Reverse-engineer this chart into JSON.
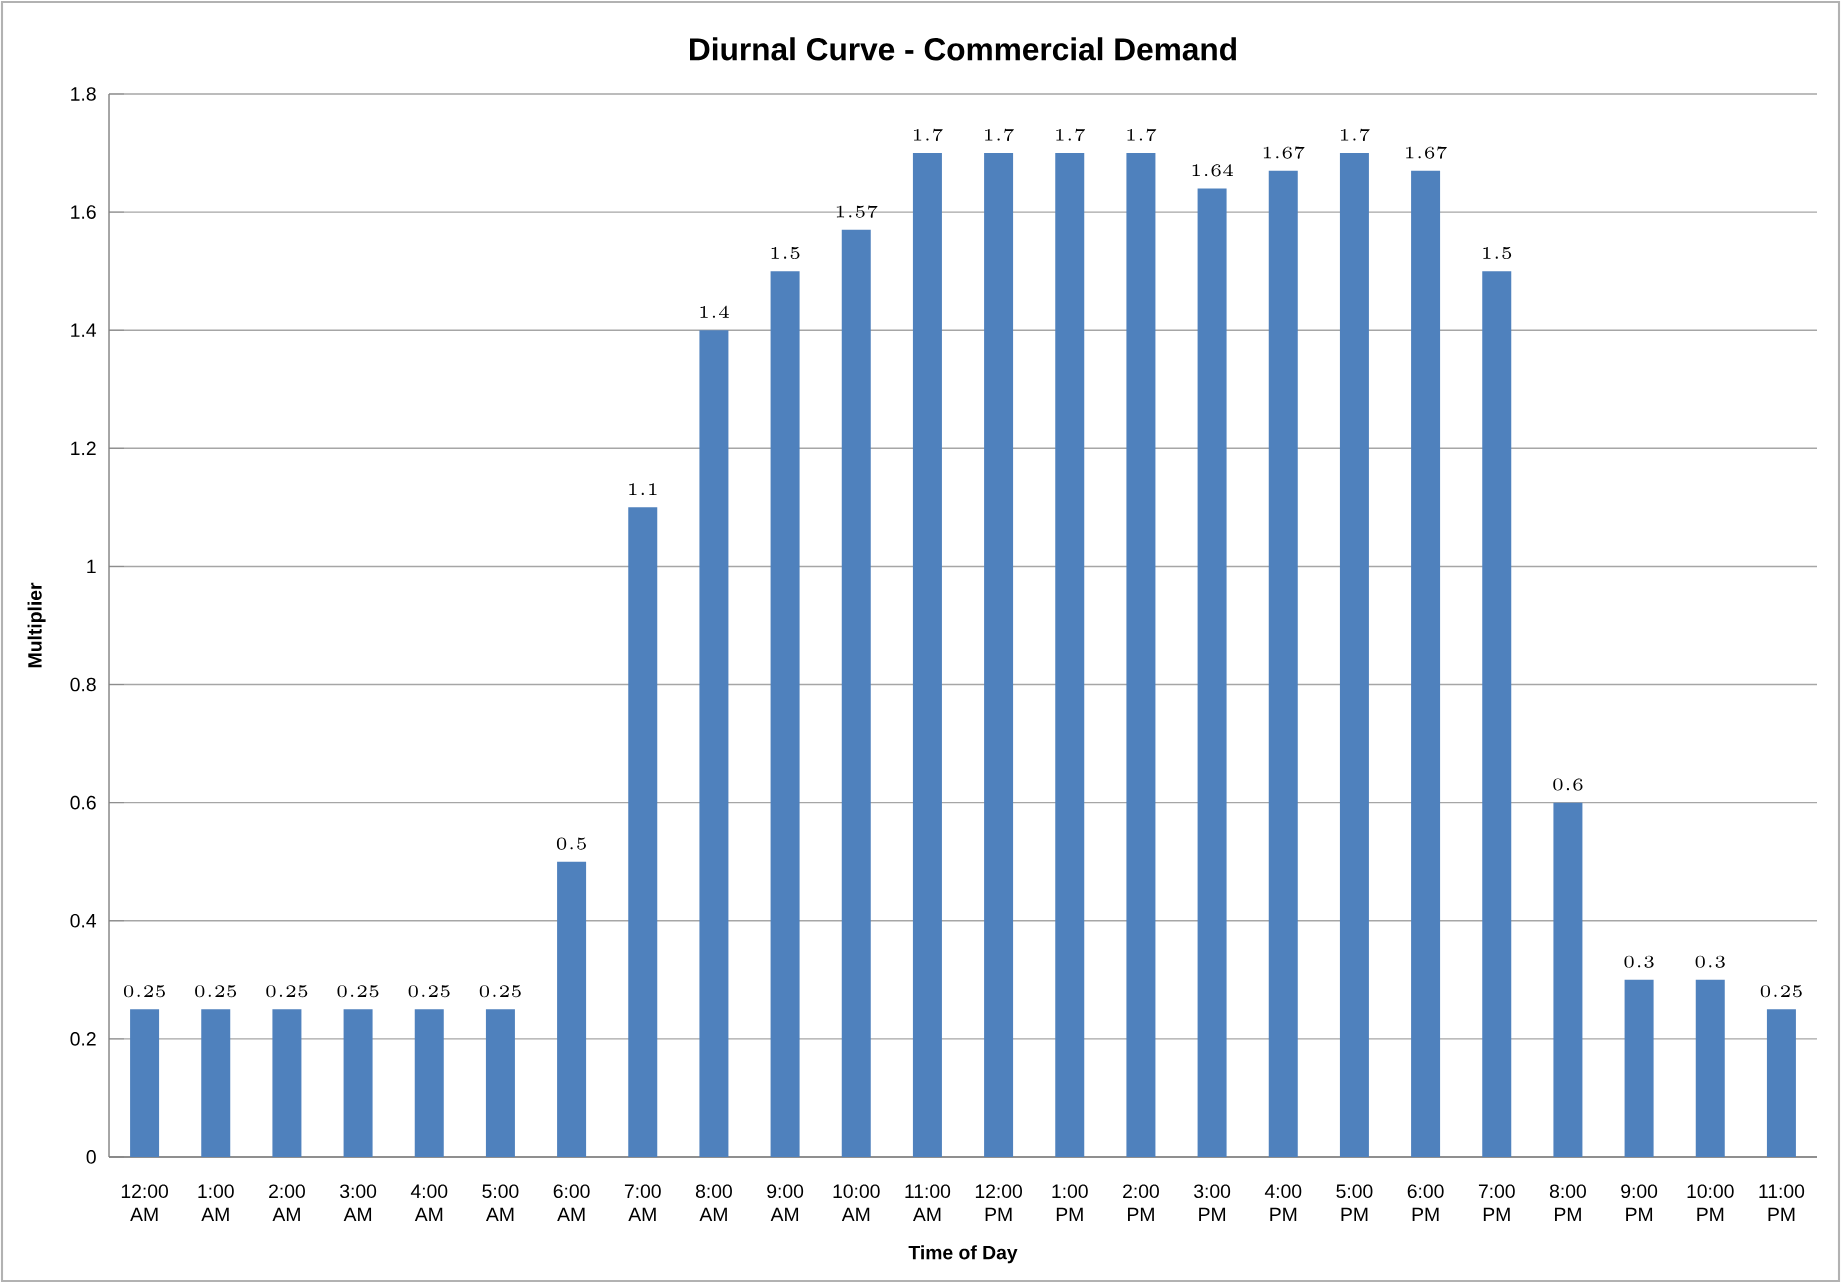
{
  "chart_data": {
    "type": "bar",
    "title": "Diurnal Curve - Commercial Demand",
    "xlabel": "Time of Day",
    "ylabel": "Multiplier",
    "categories": [
      "12:00 AM",
      "1:00 AM",
      "2:00 AM",
      "3:00 AM",
      "4:00 AM",
      "5:00 AM",
      "6:00 AM",
      "7:00 AM",
      "8:00 AM",
      "9:00 AM",
      "10:00 AM",
      "11:00 AM",
      "12:00 PM",
      "1:00 PM",
      "2:00 PM",
      "3:00 PM",
      "4:00 PM",
      "5:00 PM",
      "6:00 PM",
      "7:00 PM",
      "8:00 PM",
      "9:00 PM",
      "10:00 PM",
      "11:00 PM"
    ],
    "values": [
      0.25,
      0.25,
      0.25,
      0.25,
      0.25,
      0.25,
      0.5,
      1.1,
      1.4,
      1.5,
      1.57,
      1.7,
      1.7,
      1.7,
      1.7,
      1.64,
      1.67,
      1.7,
      1.67,
      1.5,
      0.6,
      0.3,
      0.3,
      0.25
    ],
    "color": "#4f81bd",
    "ylim": [
      0,
      1.8
    ],
    "yticks": [
      0,
      0.2,
      0.4,
      0.6,
      0.8,
      1,
      1.2,
      1.4,
      1.6,
      1.8
    ],
    "grid": "y",
    "data_labels": true
  }
}
